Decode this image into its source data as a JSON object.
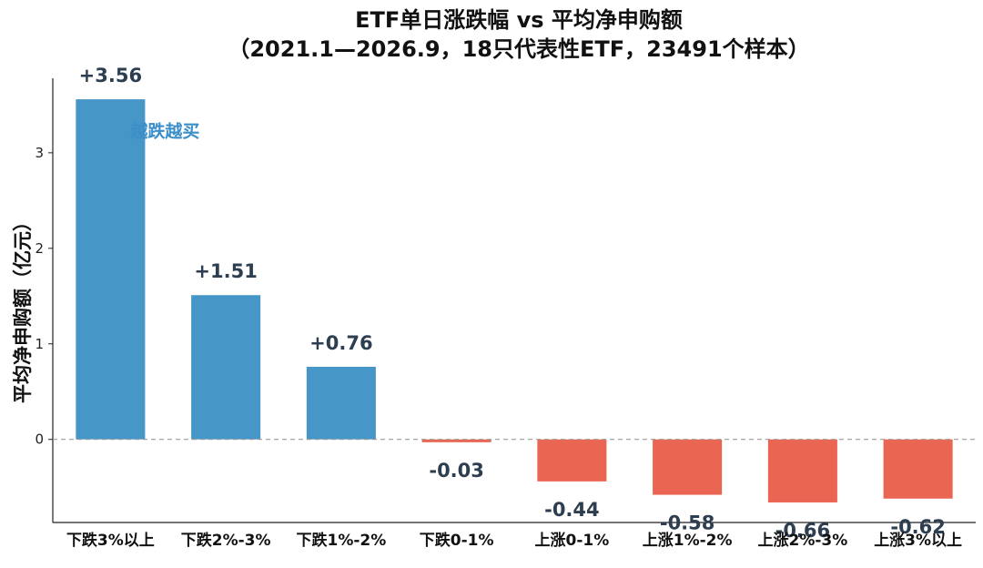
{
  "chart_data": {
    "type": "bar",
    "title": "ETF单日涨跌幅 vs 平均净申购额",
    "subtitle": "（2021.1—2026.9，18只代表性ETF，23491个样本）",
    "ylabel": "平均净申购额（亿元）",
    "xlabel": "",
    "categories": [
      "下跌3%以上",
      "下跌2%-3%",
      "下跌1%-2%",
      "下跌0-1%",
      "上涨0-1%",
      "上涨1%-2%",
      "上涨2%-3%",
      "上涨3%以上"
    ],
    "values": [
      3.56,
      1.51,
      0.76,
      -0.03,
      -0.44,
      -0.58,
      -0.66,
      -0.62
    ],
    "value_labels": [
      "+3.56",
      "+1.51",
      "+0.76",
      "-0.03",
      "-0.44",
      "-0.58",
      "-0.66",
      "-0.62"
    ],
    "ylim": [
      -0.87,
      3.78
    ],
    "yticks": [
      0,
      1,
      2,
      3
    ],
    "ytick_labels": [
      "0",
      "1",
      "2",
      "3"
    ],
    "colors": {
      "positive": "#4796c8",
      "negative": "#eb6553",
      "zero_line": "#999999"
    },
    "annotation": {
      "text": "越跌越买",
      "x_index": 0,
      "y": 3.23
    },
    "grid": false
  }
}
